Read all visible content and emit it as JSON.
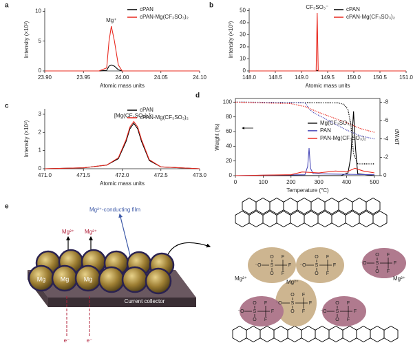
{
  "chart_data": [
    {
      "type": "line",
      "letter": "a",
      "xlabel": "Atomic mass units",
      "ylabel": "Intensity (×10³)",
      "xlim": [
        23.9,
        24.1
      ],
      "xticks": [
        {
          "value": 23.9,
          "label": "23.90"
        },
        {
          "value": 23.95,
          "label": "23.95"
        },
        {
          "value": 24,
          "label": "24.00"
        },
        {
          "value": 24.05,
          "label": "24.05"
        },
        {
          "value": 24.1,
          "label": "24.10"
        }
      ],
      "ylim": [
        0,
        10.5
      ],
      "yticks": [
        0,
        5,
        10
      ],
      "legend": "upper right",
      "annotation": "Mg⁺",
      "series": [
        {
          "name": "cPAN",
          "color": "#000000",
          "x": [
            23.9,
            23.97,
            23.98,
            23.983,
            23.986,
            23.99,
            23.995,
            24.0,
            24.1
          ],
          "values": [
            0,
            0,
            0.1,
            0.8,
            1,
            0.8,
            0.2,
            0,
            0
          ]
        },
        {
          "name": "cPAN-Mg(CF₃SO₃)₂",
          "color": "#e8281e",
          "x": [
            23.9,
            23.97,
            23.98,
            23.983,
            23.986,
            23.99,
            23.995,
            24.0,
            24.1
          ],
          "values": [
            0,
            0,
            0.5,
            5,
            7.5,
            5,
            1,
            0,
            0
          ]
        }
      ]
    },
    {
      "type": "line",
      "letter": "b",
      "xlabel": "Atomic mass units",
      "ylabel": "Intensity (×10³)",
      "xlim": [
        148,
        151
      ],
      "xticks": [
        {
          "value": 148,
          "label": "148.0"
        },
        148.5,
        {
          "value": 149,
          "label": "149.0"
        },
        149.5,
        {
          "value": 150,
          "label": "150.0"
        },
        150.5,
        {
          "value": 151,
          "label": "151.0"
        }
      ],
      "ylim": [
        0,
        52
      ],
      "yticks": [
        0,
        10,
        20,
        30,
        40,
        50
      ],
      "legend": "upper right",
      "annotation": "CF₃SO₃⁻",
      "series": [
        {
          "name": "cPAN",
          "color": "#000000",
          "x": [
            148,
            149.28,
            149.3,
            149.32,
            151
          ],
          "values": [
            0,
            0,
            0.5,
            0,
            0
          ]
        },
        {
          "name": "cPAN-Mg(CF₃SO₃)₂",
          "color": "#e8281e",
          "x": [
            148,
            149.28,
            149.3,
            149.32,
            151
          ],
          "values": [
            0,
            0,
            48,
            0,
            0
          ]
        }
      ]
    },
    {
      "type": "line",
      "letter": "c",
      "xlabel": "Atomic mass units",
      "ylabel": "Intensity (×10³)",
      "xlim": [
        471,
        473
      ],
      "xticks": [
        {
          "value": 471,
          "label": "471.0"
        },
        471.5,
        {
          "value": 472,
          "label": "472.0"
        },
        472.5,
        {
          "value": 473,
          "label": "473.0"
        }
      ],
      "ylim": [
        0,
        3.3
      ],
      "yticks": [
        0,
        1,
        2,
        3
      ],
      "legend": "upper right",
      "annotation": "[Mg(CF₃SO₃)₃]⁻",
      "series": [
        {
          "name": "cPAN",
          "color": "#000000",
          "x": [
            471,
            471.5,
            471.8,
            471.95,
            472.05,
            472.1,
            472.15,
            472.2,
            472.25,
            472.35,
            472.5,
            473
          ],
          "values": [
            0,
            0.05,
            0.2,
            0.55,
            1.5,
            2.2,
            2.5,
            2.2,
            1.5,
            0.45,
            0.1,
            0
          ]
        },
        {
          "name": "cPAN-Mg(CF₃SO₃)₂",
          "color": "#e8281e",
          "x": [
            471,
            471.5,
            471.8,
            471.95,
            472.05,
            472.1,
            472.15,
            472.2,
            472.25,
            472.35,
            472.5,
            473
          ],
          "values": [
            0,
            0.05,
            0.2,
            0.6,
            1.6,
            2.3,
            2.6,
            2.3,
            1.6,
            0.5,
            0.1,
            0
          ]
        }
      ]
    },
    {
      "type": "line",
      "letter": "d",
      "xlabel": "Temperature (°C)",
      "ylabel": "Weight (%)",
      "y2label": "dW/dT",
      "xlim": [
        0,
        520
      ],
      "xticks": [
        0,
        100,
        200,
        300,
        400,
        500
      ],
      "ylim": [
        0,
        105
      ],
      "yticks": [
        0,
        20,
        40,
        60,
        80,
        100
      ],
      "y2lim": [
        0,
        -8.4
      ],
      "y2ticks": [
        0,
        -2,
        -4,
        -6,
        -8
      ],
      "legend": "center right",
      "series": [
        {
          "name": "Mg(CF₃SO₃)₂",
          "color": "#000000",
          "axis": "y2",
          "x": [
            0,
            380,
            405,
            415,
            425,
            432,
            440,
            500
          ],
          "values": [
            0,
            0,
            -0.3,
            -2,
            -7,
            -3,
            -0.2,
            0
          ]
        },
        {
          "name": "PAN",
          "color": "#4a4ab8",
          "axis": "y2",
          "x": [
            0,
            250,
            260,
            265,
            270,
            280,
            500
          ],
          "values": [
            0,
            -0.1,
            -1,
            -3,
            -0.8,
            -0.2,
            -0.1
          ]
        },
        {
          "name": "PAN-Mg(CF₃SO₃)₂",
          "color": "#e8281e",
          "axis": "y2",
          "x": [
            0,
            200,
            240,
            300,
            360,
            400,
            430,
            460,
            500
          ],
          "values": [
            0,
            -0.1,
            -0.4,
            -0.3,
            -0.5,
            -0.4,
            -0.8,
            -0.5,
            -0.3
          ]
        },
        {
          "color": "#000000",
          "linestyle": "dotted",
          "x": [
            0,
            370,
            390,
            405,
            415,
            425,
            440,
            500
          ],
          "values": [
            100,
            99,
            97,
            90,
            70,
            30,
            16,
            16
          ]
        },
        {
          "color": "#4a4ab8",
          "linestyle": "dotted",
          "x": [
            0,
            250,
            262,
            275,
            320,
            400,
            450,
            500
          ],
          "values": [
            100,
            99,
            93,
            87,
            78,
            62,
            54,
            50
          ]
        },
        {
          "color": "#e8281e",
          "linestyle": "dotted",
          "x": [
            0,
            200,
            250,
            300,
            350,
            400,
            450,
            500
          ],
          "values": [
            100,
            98,
            94,
            86,
            79,
            72,
            64,
            59
          ]
        }
      ]
    }
  ],
  "diagram": {
    "letter": "e",
    "film_label": "Mg²⁺-conducting film",
    "ion_labels": [
      "Mg²⁺",
      "Mg²⁺"
    ],
    "particle_labels": [
      "Mg",
      "Mg",
      "Mg"
    ],
    "collector_label": "Current collector",
    "electron_labels": [
      "e⁻",
      "e⁻"
    ],
    "structure": {
      "ions": [
        "Mg²⁺",
        "Mg²⁺",
        "Mg²⁺"
      ],
      "atoms": {
        "sulfur": "S",
        "oxygen": "O",
        "anion_oxygen": "⁻O",
        "fluorine": "F"
      }
    }
  }
}
